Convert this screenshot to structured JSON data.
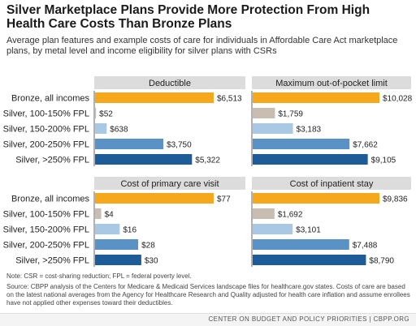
{
  "title": "Silver Marketplace Plans Provide More Protection From High Health Care Costs Than Bronze Plans",
  "subtitle": "Average plan features and example costs of care for individuals in Affordable Care Act marketplace plans, by metal level and income eligibility for silver plans with CSRs",
  "note": "Note: CSR = cost-sharing reduction; FPL = federal poverty level.",
  "source": "Source: CBPP analysis of the Centers for Medicare & Medicaid Services landscape files for healthcare.gov states. Costs of care are based on the latest national averages from the Agency for Healthcare Research and Quality adjusted for health care inflation and assume enrollees have not applied other expenses toward their deductibles.",
  "footer": "CENTER ON BUDGET AND POLICY PRIORITIES | CBPP.ORG",
  "colors": {
    "bronze": "#F5A81C",
    "silver_100_150": "#C9BDB1",
    "silver_150_200": "#A8C8E3",
    "silver_200_250": "#5B92C6",
    "silver_250": "#1D5C99",
    "panel_header": "#DCDCDC"
  },
  "chart_data": [
    {
      "type": "bar",
      "title": "Deductible",
      "categories": [
        "Bronze, all incomes",
        "Silver, 100-150% FPL",
        "Silver, 150-200% FPL",
        "Silver, 200-250% FPL",
        "Silver, >250% FPL"
      ],
      "values": [
        6513,
        52,
        638,
        3750,
        5322
      ],
      "labels": [
        "$6,513",
        "$52",
        "$638",
        "$3,750",
        "$5,322"
      ],
      "xlim": [
        0,
        6513
      ]
    },
    {
      "type": "bar",
      "title": "Maximum out-of-pocket limit",
      "categories": [
        "Bronze, all incomes",
        "Silver, 100-150% FPL",
        "Silver, 150-200% FPL",
        "Silver, 200-250% FPL",
        "Silver, >250% FPL"
      ],
      "values": [
        10028,
        1759,
        3183,
        7662,
        9105
      ],
      "labels": [
        "$10,028",
        "$1,759",
        "$3,183",
        "$7,662",
        "$9,105"
      ],
      "xlim": [
        0,
        10028
      ]
    },
    {
      "type": "bar",
      "title": "Cost of primary care visit",
      "categories": [
        "Bronze, all incomes",
        "Silver, 100-150% FPL",
        "Silver, 150-200% FPL",
        "Silver, 200-250% FPL",
        "Silver, >250% FPL"
      ],
      "values": [
        77,
        4,
        16,
        28,
        30
      ],
      "labels": [
        "$77",
        "$4",
        "$16",
        "$28",
        "$30"
      ],
      "xlim": [
        0,
        77
      ]
    },
    {
      "type": "bar",
      "title": "Cost of inpatient stay",
      "categories": [
        "Bronze, all incomes",
        "Silver, 100-150% FPL",
        "Silver, 150-200% FPL",
        "Silver, 200-250% FPL",
        "Silver, >250% FPL"
      ],
      "values": [
        9836,
        1692,
        3101,
        7488,
        8790
      ],
      "labels": [
        "$9,836",
        "$1,692",
        "$3,101",
        "$7,488",
        "$8,790"
      ],
      "xlim": [
        0,
        9836
      ]
    }
  ]
}
